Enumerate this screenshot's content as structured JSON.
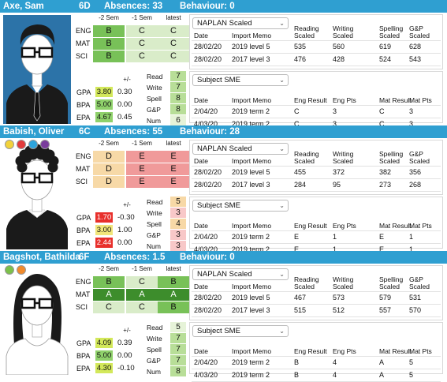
{
  "students": [
    {
      "name": "Axe, Sam",
      "class": "6D",
      "absences": "Absences: 33",
      "behaviour": "Behaviour: 0",
      "dots": [],
      "hair": "short",
      "grade_headers": [
        "-2 Sem",
        "-1 Sem",
        "latest"
      ],
      "subjects": [
        {
          "label": "ENG",
          "grades": [
            "B",
            "C",
            "C"
          ],
          "styles": [
            "mid",
            "pale",
            "pale"
          ]
        },
        {
          "label": "MAT",
          "grades": [
            "B",
            "C",
            "C"
          ],
          "styles": [
            "mid",
            "pale",
            "pale"
          ]
        },
        {
          "label": "SCI",
          "grades": [
            "B",
            "C",
            "C"
          ],
          "styles": [
            "mid",
            "pale",
            "pale"
          ]
        }
      ],
      "metrics_header": "+/-",
      "metrics": [
        {
          "label": "GPA",
          "value": "3.80",
          "delta": "0.30",
          "style": "lime"
        },
        {
          "label": "BPA",
          "value": "5.00",
          "delta": "0.00",
          "style": "green"
        },
        {
          "label": "EPA",
          "value": "4.67",
          "delta": "0.45",
          "style": "green"
        }
      ],
      "literacy": [
        {
          "label": "Read",
          "value": "7",
          "style": "lgreen"
        },
        {
          "label": "Write",
          "value": "7",
          "style": "lgreen"
        },
        {
          "label": "Spell",
          "value": "8",
          "style": "lgreen"
        },
        {
          "label": "G&P",
          "value": "8",
          "style": "lgreen"
        },
        {
          "label": "Num",
          "value": "6",
          "style": "pale2"
        }
      ],
      "naplan": {
        "select": "NAPLAN Scaled",
        "headers": [
          "Date",
          "Import Memo",
          "Reading Scaled",
          "Writing Scaled",
          "Spelling Scaled",
          "G&P Scaled"
        ],
        "rows": [
          [
            "28/02/20",
            "2019 level 5",
            "535",
            "560",
            "619",
            "628"
          ],
          [
            "28/02/20",
            "2017 level 3",
            "476",
            "428",
            "524",
            "543"
          ]
        ]
      },
      "sme": {
        "select": "Subject SME",
        "headers": [
          "Date",
          "Import Memo",
          "Eng Result",
          "Eng Pts",
          "Mat Result",
          "Mat Pts"
        ],
        "rows": [
          [
            "2/04/20",
            "2019 term 2",
            "C",
            "3",
            "C",
            "3"
          ],
          [
            "4/03/20",
            "2019 term 2",
            "C",
            "3",
            "C",
            "3"
          ]
        ]
      }
    },
    {
      "name": "Babish, Oliver",
      "class": "6C",
      "absences": "Absences: 55",
      "behaviour": "Behaviour: 28",
      "dots": [
        "#f2d23a",
        "#e23b3b",
        "#2da4dc",
        "#7a3d9c"
      ],
      "hair": "curly",
      "grade_headers": [
        "-2 Sem",
        "-1 Sem",
        "latest"
      ],
      "subjects": [
        {
          "label": "ENG",
          "grades": [
            "D",
            "E",
            "E"
          ],
          "styles": [
            "peach",
            "salmon",
            "salmon"
          ]
        },
        {
          "label": "MAT",
          "grades": [
            "D",
            "E",
            "E"
          ],
          "styles": [
            "peach",
            "salmon",
            "salmon"
          ]
        },
        {
          "label": "SCI",
          "grades": [
            "D",
            "E",
            "E"
          ],
          "styles": [
            "peach",
            "salmon",
            "salmon"
          ]
        }
      ],
      "metrics_header": "+/-",
      "metrics": [
        {
          "label": "GPA",
          "value": "1.70",
          "delta": "-0.30",
          "style": "red"
        },
        {
          "label": "BPA",
          "value": "3.00",
          "delta": "1.00",
          "style": "yel"
        },
        {
          "label": "EPA",
          "value": "2.44",
          "delta": "0.00",
          "style": "red"
        }
      ],
      "literacy": [
        {
          "label": "Read",
          "value": "5",
          "style": "lp"
        },
        {
          "label": "Write",
          "value": "3",
          "style": "pink"
        },
        {
          "label": "Spell",
          "value": "4",
          "style": "lp"
        },
        {
          "label": "G&P",
          "value": "3",
          "style": "pink"
        },
        {
          "label": "Num",
          "value": "3",
          "style": "pink"
        }
      ],
      "naplan": {
        "select": "NAPLAN Scaled",
        "headers": [
          "Date",
          "Import Memo",
          "Reading Scaled",
          "Writing Scaled",
          "Spelling Scaled",
          "G&P Scaled"
        ],
        "rows": [
          [
            "28/02/20",
            "2019 level 5",
            "455",
            "372",
            "382",
            "356"
          ],
          [
            "28/02/20",
            "2017 level 3",
            "284",
            "95",
            "273",
            "268"
          ]
        ]
      },
      "sme": {
        "select": "Subject SME",
        "headers": [
          "Date",
          "Import Memo",
          "Eng Result",
          "Eng Pts",
          "Mat Result",
          "Mat Pts"
        ],
        "rows": [
          [
            "2/04/20",
            "2019 term 2",
            "E",
            "1",
            "E",
            "1"
          ],
          [
            "4/03/20",
            "2019 term 2",
            "E",
            "1",
            "E",
            "1"
          ]
        ]
      }
    },
    {
      "name": "Bagshot, Bathilda",
      "class": "6F",
      "absences": "Absences: 1.5",
      "behaviour": "Behaviour: 0",
      "dots": [
        "#7cc04a",
        "#f08a2c"
      ],
      "hair": "long",
      "grade_headers": [
        "-2 Sem",
        "-1 Sem",
        "latest"
      ],
      "subjects": [
        {
          "label": "ENG",
          "grades": [
            "B",
            "C",
            "B"
          ],
          "styles": [
            "mid",
            "pale",
            "mid"
          ]
        },
        {
          "label": "MAT",
          "grades": [
            "A",
            "A",
            "A"
          ],
          "styles": [
            "dark",
            "dark",
            "dark"
          ]
        },
        {
          "label": "SCI",
          "grades": [
            "C",
            "C",
            "B"
          ],
          "styles": [
            "pale",
            "pale",
            "mid"
          ]
        }
      ],
      "metrics_header": "+/-",
      "metrics": [
        {
          "label": "GPA",
          "value": "4.09",
          "delta": "0.39",
          "style": "lime"
        },
        {
          "label": "BPA",
          "value": "5.00",
          "delta": "0.00",
          "style": "green"
        },
        {
          "label": "EPA",
          "value": "4.30",
          "delta": "-0.10",
          "style": "lime"
        }
      ],
      "literacy": [
        {
          "label": "Read",
          "value": "5",
          "style": "pale2"
        },
        {
          "label": "Write",
          "value": "7",
          "style": "lgreen"
        },
        {
          "label": "Spell",
          "value": "7",
          "style": "lgreen"
        },
        {
          "label": "G&P",
          "value": "7",
          "style": "lgreen"
        },
        {
          "label": "Num",
          "value": "8",
          "style": "lgreen"
        }
      ],
      "naplan": {
        "select": "NAPLAN Scaled",
        "headers": [
          "Date",
          "Import Memo",
          "Reading Scaled",
          "Writing Scaled",
          "Spelling Scaled",
          "G&P Scaled"
        ],
        "rows": [
          [
            "28/02/20",
            "2019 level 5",
            "467",
            "573",
            "579",
            "531"
          ],
          [
            "28/02/20",
            "2017 level 3",
            "515",
            "512",
            "557",
            "570"
          ]
        ]
      },
      "sme": {
        "select": "Subject SME",
        "headers": [
          "Date",
          "Import Memo",
          "Eng Result",
          "Eng Pts",
          "Mat Result",
          "Mat Pts"
        ],
        "rows": [
          [
            "2/04/20",
            "2019 term 2",
            "B",
            "4",
            "A",
            "5"
          ],
          [
            "4/03/20",
            "2019 term 2",
            "B",
            "4",
            "A",
            "5"
          ]
        ]
      }
    }
  ]
}
